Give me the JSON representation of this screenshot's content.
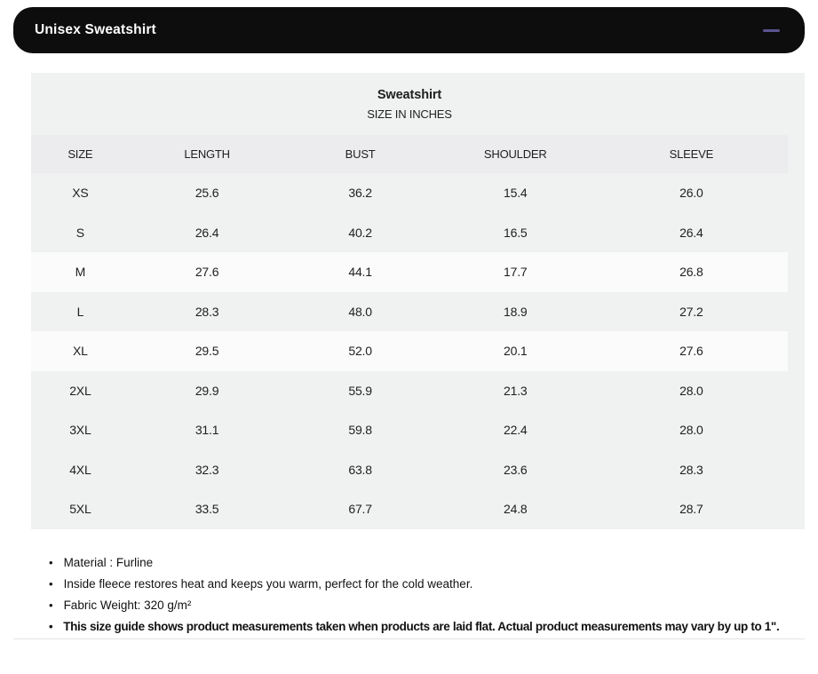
{
  "accordion": {
    "title": "Unisex Sweatshirt",
    "collapse_icon": "minus-icon"
  },
  "size_chart": {
    "title": "Sweatshirt",
    "subtitle": "SIZE IN INCHES",
    "columns": [
      "SIZE",
      "LENGTH",
      "BUST",
      "SHOULDER",
      "SLEEVE"
    ],
    "rows": [
      [
        "XS",
        "25.6",
        "36.2",
        "15.4",
        "26.0"
      ],
      [
        "S",
        "26.4",
        "40.2",
        "16.5",
        "26.4"
      ],
      [
        "M",
        "27.6",
        "44.1",
        "17.7",
        "26.8"
      ],
      [
        "L",
        "28.3",
        "48.0",
        "18.9",
        "27.2"
      ],
      [
        "XL",
        "29.5",
        "52.0",
        "20.1",
        "27.6"
      ],
      [
        "2XL",
        "29.9",
        "55.9",
        "21.3",
        "28.0"
      ],
      [
        "3XL",
        "31.1",
        "59.8",
        "22.4",
        "28.0"
      ],
      [
        "4XL",
        "32.3",
        "63.8",
        "23.6",
        "28.3"
      ],
      [
        "5XL",
        "33.5",
        "67.7",
        "24.8",
        "28.7"
      ]
    ]
  },
  "notes": [
    "Material : Furline",
    "Inside fleece restores heat and keeps you warm, perfect for the cold weather.",
    "Fabric Weight: 320 g/m²",
    "This size guide shows product measurements taken when products are laid flat. Actual product measurements may vary by up to 1\"."
  ],
  "colors": {
    "header_bar": "#0d0d0d",
    "minus_icon": "#5b5490",
    "table_shade": "#f0f1f1",
    "header_row": "#ececee",
    "highlight_row": "#fbfbfb",
    "divider": "#e4e4e4"
  }
}
